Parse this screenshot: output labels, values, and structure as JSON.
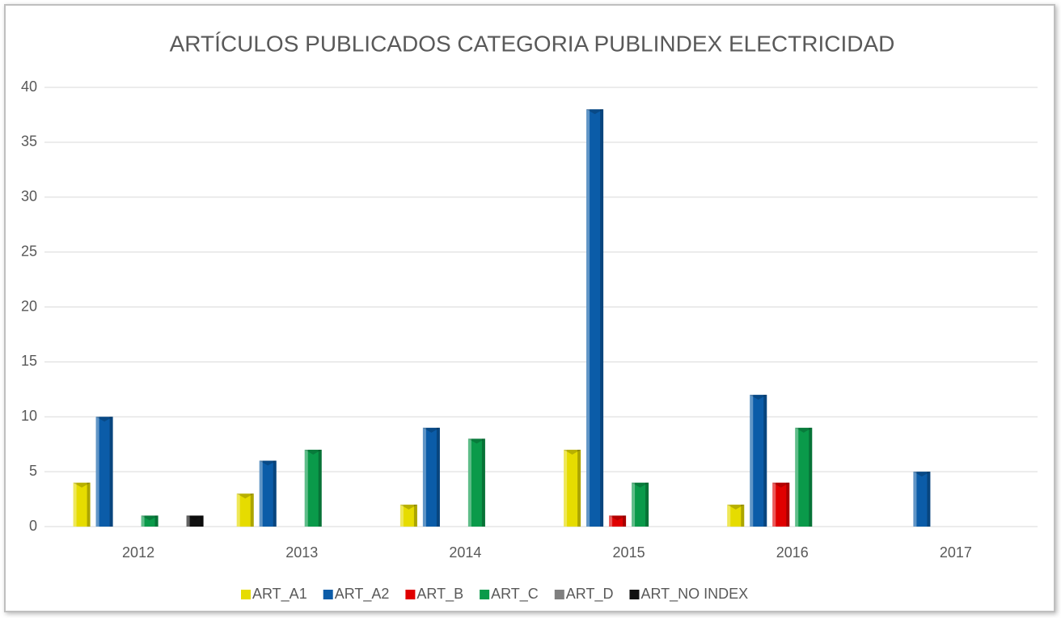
{
  "chart_data": {
    "type": "bar",
    "title": "ARTÍCULOS PUBLICADOS CATEGORIA PUBLINDEX ELECTRICIDAD",
    "categories": [
      "2012",
      "2013",
      "2014",
      "2015",
      "2016",
      "2017"
    ],
    "series": [
      {
        "name": "ART_A1",
        "color": "#e6dc00",
        "values": [
          4,
          3,
          2,
          7,
          2,
          0
        ]
      },
      {
        "name": "ART_A2",
        "color": "#0b5ca8",
        "values": [
          10,
          6,
          9,
          38,
          12,
          5
        ]
      },
      {
        "name": "ART_B",
        "color": "#e00000",
        "values": [
          0,
          0,
          0,
          1,
          4,
          0
        ]
      },
      {
        "name": "ART_C",
        "color": "#0a9a4a",
        "values": [
          1,
          7,
          8,
          4,
          9,
          0
        ]
      },
      {
        "name": "ART_D",
        "color": "#7f7f7f",
        "values": [
          0,
          0,
          0,
          0,
          0,
          0
        ]
      },
      {
        "name": "ART_NO INDEX",
        "color": "#111111",
        "values": [
          1,
          0,
          0,
          0,
          0,
          0
        ]
      }
    ],
    "ylim": [
      0,
      40
    ],
    "yticks": [
      0,
      5,
      10,
      15,
      20,
      25,
      30,
      35,
      40
    ],
    "grid": true,
    "legend": "bottom"
  }
}
